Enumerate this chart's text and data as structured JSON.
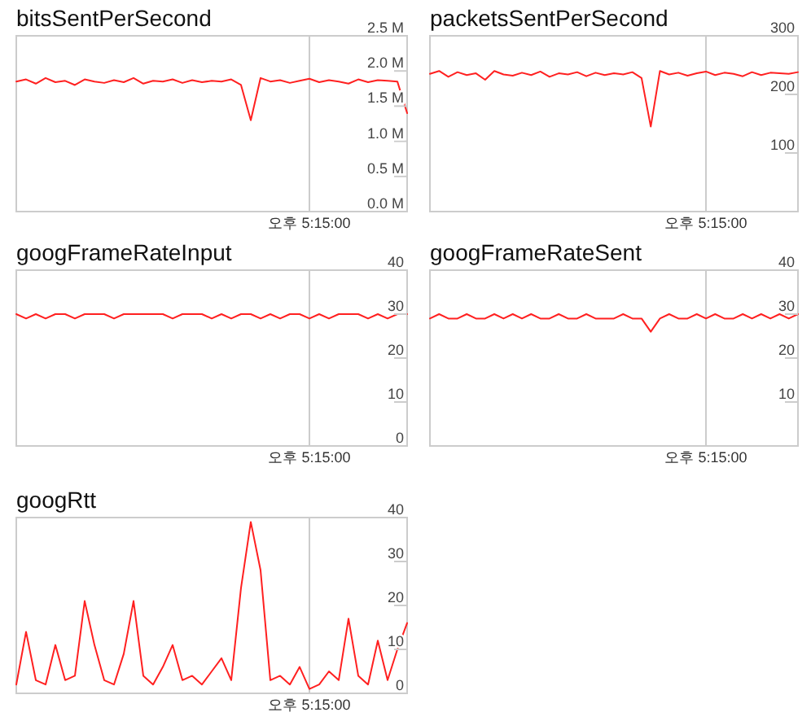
{
  "chart_data": [
    {
      "type": "line",
      "title": "bitsSentPerSecond",
      "color": "#ff2020",
      "annotations": [
        "오후 5:15:00"
      ],
      "ylim": [
        0,
        2500000
      ],
      "yticks": [
        {
          "value": 0,
          "label": "0.0 M"
        },
        {
          "value": 500000,
          "label": "0.5 M"
        },
        {
          "value": 1000000,
          "label": "1.0 M"
        },
        {
          "value": 1500000,
          "label": "1.5 M"
        },
        {
          "value": 2000000,
          "label": "2.0 M"
        },
        {
          "value": 2500000,
          "label": "2.5 M"
        }
      ],
      "categories": [
        null,
        null,
        null,
        null,
        null,
        null,
        null,
        null,
        null,
        null,
        null,
        null,
        null,
        null,
        null,
        null,
        null,
        null,
        null,
        null,
        null,
        null,
        null,
        null,
        null,
        null,
        null,
        null,
        null,
        null,
        null,
        null,
        null,
        null,
        null,
        null,
        null,
        null,
        null,
        null,
        null
      ],
      "values": [
        1850000,
        1880000,
        1820000,
        1900000,
        1840000,
        1860000,
        1800000,
        1880000,
        1850000,
        1830000,
        1870000,
        1840000,
        1900000,
        1820000,
        1860000,
        1850000,
        1880000,
        1830000,
        1870000,
        1840000,
        1860000,
        1850000,
        1880000,
        1800000,
        1300000,
        1900000,
        1850000,
        1870000,
        1830000,
        1860000,
        1890000,
        1840000,
        1870000,
        1850000,
        1820000,
        1880000,
        1840000,
        1870000,
        1860000,
        1850000,
        1400000
      ]
    },
    {
      "type": "line",
      "title": "packetsSentPerSecond",
      "color": "#ff2020",
      "annotations": [
        "오후 5:15:00"
      ],
      "ylim": [
        0,
        300
      ],
      "yticks": [
        {
          "value": 100,
          "label": "100"
        },
        {
          "value": 200,
          "label": "200"
        },
        {
          "value": 300,
          "label": "300"
        }
      ],
      "categories": [
        null,
        null,
        null,
        null,
        null,
        null,
        null,
        null,
        null,
        null,
        null,
        null,
        null,
        null,
        null,
        null,
        null,
        null,
        null,
        null,
        null,
        null,
        null,
        null,
        null,
        null,
        null,
        null,
        null,
        null,
        null,
        null,
        null,
        null,
        null,
        null,
        null,
        null,
        null,
        null,
        null
      ],
      "values": [
        235,
        240,
        230,
        238,
        233,
        236,
        225,
        240,
        234,
        232,
        237,
        233,
        239,
        230,
        236,
        234,
        238,
        231,
        237,
        233,
        236,
        234,
        238,
        228,
        145,
        240,
        234,
        237,
        232,
        236,
        239,
        233,
        237,
        235,
        231,
        238,
        233,
        237,
        236,
        235,
        238
      ]
    },
    {
      "type": "line",
      "title": "googFrameRateInput",
      "color": "#ff2020",
      "annotations": [
        "오후 5:15:00"
      ],
      "ylim": [
        0,
        40
      ],
      "yticks": [
        {
          "value": 0,
          "label": "0"
        },
        {
          "value": 10,
          "label": "10"
        },
        {
          "value": 20,
          "label": "20"
        },
        {
          "value": 30,
          "label": "30"
        },
        {
          "value": 40,
          "label": "40"
        }
      ],
      "categories": [
        null,
        null,
        null,
        null,
        null,
        null,
        null,
        null,
        null,
        null,
        null,
        null,
        null,
        null,
        null,
        null,
        null,
        null,
        null,
        null,
        null,
        null,
        null,
        null,
        null,
        null,
        null,
        null,
        null,
        null,
        null,
        null,
        null,
        null,
        null,
        null,
        null,
        null,
        null,
        null,
        null
      ],
      "values": [
        30,
        29,
        30,
        29,
        30,
        30,
        29,
        30,
        30,
        30,
        29,
        30,
        30,
        30,
        30,
        30,
        29,
        30,
        30,
        30,
        29,
        30,
        29,
        30,
        30,
        29,
        30,
        29,
        30,
        30,
        29,
        30,
        29,
        30,
        30,
        30,
        29,
        30,
        29,
        30,
        30
      ]
    },
    {
      "type": "line",
      "title": "googFrameRateSent",
      "color": "#ff2020",
      "annotations": [
        "오후 5:15:00"
      ],
      "ylim": [
        0,
        40
      ],
      "yticks": [
        {
          "value": 10,
          "label": "10"
        },
        {
          "value": 20,
          "label": "20"
        },
        {
          "value": 30,
          "label": "30"
        },
        {
          "value": 40,
          "label": "40"
        }
      ],
      "categories": [
        null,
        null,
        null,
        null,
        null,
        null,
        null,
        null,
        null,
        null,
        null,
        null,
        null,
        null,
        null,
        null,
        null,
        null,
        null,
        null,
        null,
        null,
        null,
        null,
        null,
        null,
        null,
        null,
        null,
        null,
        null,
        null,
        null,
        null,
        null,
        null,
        null,
        null,
        null,
        null,
        null
      ],
      "values": [
        29,
        30,
        29,
        29,
        30,
        29,
        29,
        30,
        29,
        30,
        29,
        30,
        29,
        29,
        30,
        29,
        29,
        30,
        29,
        29,
        29,
        30,
        29,
        29,
        26,
        29,
        30,
        29,
        29,
        30,
        29,
        30,
        29,
        29,
        30,
        29,
        30,
        29,
        30,
        29,
        30
      ]
    },
    {
      "type": "line",
      "title": "googRtt",
      "color": "#ff2020",
      "annotations": [
        "오후 5:15:00"
      ],
      "ylim": [
        0,
        40
      ],
      "yticks": [
        {
          "value": 0,
          "label": "0"
        },
        {
          "value": 10,
          "label": "10"
        },
        {
          "value": 20,
          "label": "20"
        },
        {
          "value": 30,
          "label": "30"
        },
        {
          "value": 40,
          "label": "40"
        }
      ],
      "categories": [
        null,
        null,
        null,
        null,
        null,
        null,
        null,
        null,
        null,
        null,
        null,
        null,
        null,
        null,
        null,
        null,
        null,
        null,
        null,
        null,
        null,
        null,
        null,
        null,
        null,
        null,
        null,
        null,
        null,
        null,
        null,
        null,
        null,
        null,
        null,
        null,
        null,
        null,
        null,
        null,
        null
      ],
      "values": [
        2,
        14,
        3,
        2,
        11,
        3,
        4,
        21,
        11,
        3,
        2,
        9,
        21,
        4,
        2,
        6,
        11,
        3,
        4,
        2,
        5,
        8,
        3,
        24,
        39,
        28,
        3,
        4,
        2,
        6,
        1,
        2,
        5,
        3,
        17,
        4,
        2,
        12,
        3,
        10,
        16
      ]
    }
  ]
}
